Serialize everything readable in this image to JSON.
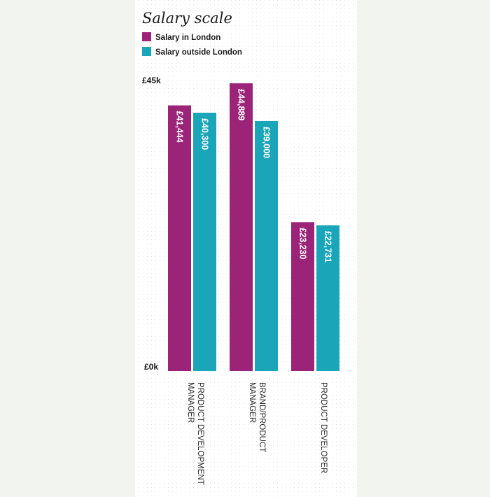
{
  "colors": {
    "page_background": "#f1f4ef",
    "panel_background": "#ffffff",
    "london": "#9b2479",
    "outside_london": "#1aa5b8"
  },
  "chart_data": {
    "type": "bar",
    "title": "Salary scale",
    "xlabel": "",
    "ylabel": "",
    "ylim": [
      0,
      45000
    ],
    "y_tick_labels": [
      "£0k",
      "£45k"
    ],
    "grid": false,
    "legend_position": "top-left",
    "categories": [
      [
        "PRODUCT DEVELOPMENT",
        "MANAGER"
      ],
      [
        "BRAND/PRODUCT",
        "MANAGER"
      ],
      [
        "PRODUCT DEVELOPER"
      ]
    ],
    "series": [
      {
        "name": "Salary in London",
        "color": "#9b2479",
        "values": [
          41444,
          44889,
          23230
        ],
        "labels": [
          "£41,444",
          "£44,889",
          "£23,230"
        ]
      },
      {
        "name": "Salary outside London",
        "color": "#1aa5b8",
        "values": [
          40300,
          39000,
          22731
        ],
        "labels": [
          "£40,300",
          "£39,000",
          "£22,731"
        ]
      }
    ]
  }
}
